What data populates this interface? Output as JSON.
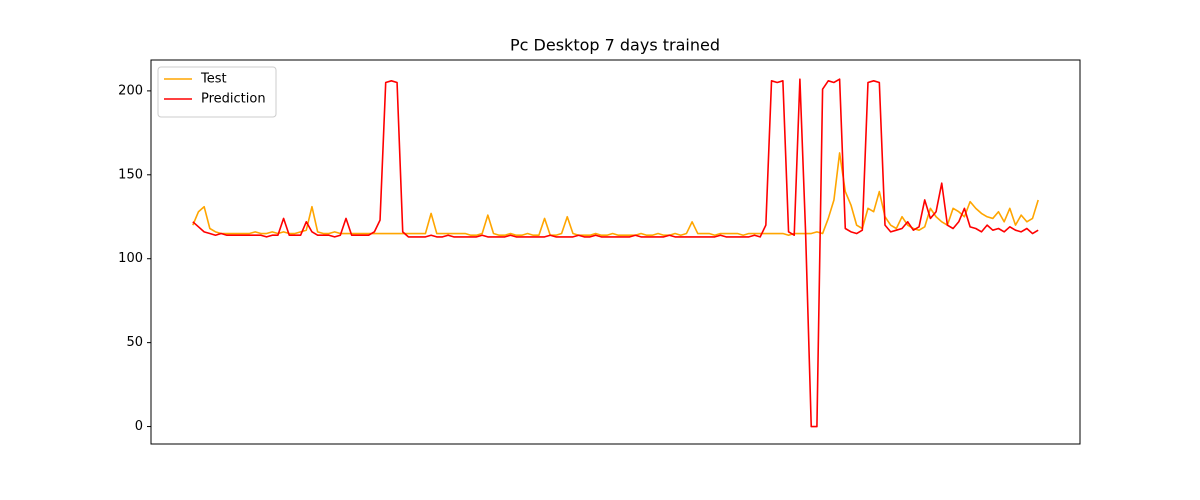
{
  "chart_data": {
    "type": "line",
    "title": "Pc Desktop 7 days trained",
    "ylim": [
      -10.4,
      218.4
    ],
    "yticks": [
      0,
      50,
      100,
      150,
      200
    ],
    "legend": "upper left",
    "series": [
      {
        "name": "Test",
        "color": "#ffa500",
        "values": [
          120,
          128,
          131,
          118,
          116,
          115,
          115,
          115,
          115,
          115,
          115,
          116,
          115,
          115,
          116,
          115,
          116,
          115,
          115,
          116,
          117,
          131,
          116,
          115,
          115,
          116,
          115,
          115,
          115,
          115,
          115,
          115,
          115,
          115,
          115,
          115,
          115,
          115,
          115,
          115,
          115,
          115,
          127,
          115,
          115,
          115,
          115,
          115,
          115,
          114,
          114,
          115,
          126,
          115,
          114,
          114,
          115,
          114,
          114,
          115,
          114,
          114,
          124,
          114,
          114,
          115,
          125,
          115,
          114,
          114,
          114,
          115,
          114,
          114,
          115,
          114,
          114,
          114,
          114,
          115,
          114,
          114,
          115,
          114,
          114,
          115,
          114,
          115,
          122,
          115,
          115,
          115,
          114,
          115,
          115,
          115,
          115,
          114,
          115,
          115,
          115,
          115,
          115,
          115,
          115,
          114,
          115,
          115,
          115,
          115,
          116,
          115,
          124,
          135,
          163,
          140,
          132,
          120,
          118,
          130,
          128,
          140,
          125,
          120,
          118,
          125,
          120,
          118,
          117,
          119,
          130,
          125,
          122,
          120,
          130,
          128,
          125,
          134,
          130,
          127,
          125,
          124,
          128,
          122,
          130,
          120,
          126,
          122,
          124,
          135
        ]
      },
      {
        "name": "Prediction",
        "color": "#ff0000",
        "values": [
          122,
          119,
          116,
          115,
          114,
          115,
          114,
          114,
          114,
          114,
          114,
          114,
          114,
          113,
          114,
          114,
          124,
          114,
          114,
          114,
          122,
          116,
          114,
          114,
          114,
          113,
          114,
          124,
          114,
          114,
          114,
          114,
          116,
          123,
          205,
          206,
          205,
          116,
          113,
          113,
          113,
          113,
          114,
          113,
          113,
          114,
          113,
          113,
          113,
          113,
          113,
          114,
          113,
          113,
          113,
          113,
          114,
          113,
          113,
          113,
          113,
          113,
          113,
          114,
          113,
          113,
          113,
          113,
          114,
          113,
          113,
          114,
          113,
          113,
          113,
          113,
          113,
          113,
          114,
          113,
          113,
          113,
          113,
          113,
          114,
          113,
          113,
          113,
          113,
          113,
          113,
          113,
          113,
          114,
          113,
          113,
          113,
          113,
          113,
          114,
          113,
          120,
          206,
          205,
          206,
          116,
          114,
          207,
          116,
          0,
          0,
          201,
          206,
          205,
          207,
          118,
          116,
          115,
          117,
          205,
          206,
          205,
          120,
          116,
          117,
          118,
          122,
          117,
          119,
          135,
          124,
          128,
          145,
          120,
          118,
          122,
          130,
          119,
          118,
          116,
          120,
          117,
          118,
          116,
          119,
          117,
          116,
          118,
          115,
          117
        ]
      }
    ]
  }
}
